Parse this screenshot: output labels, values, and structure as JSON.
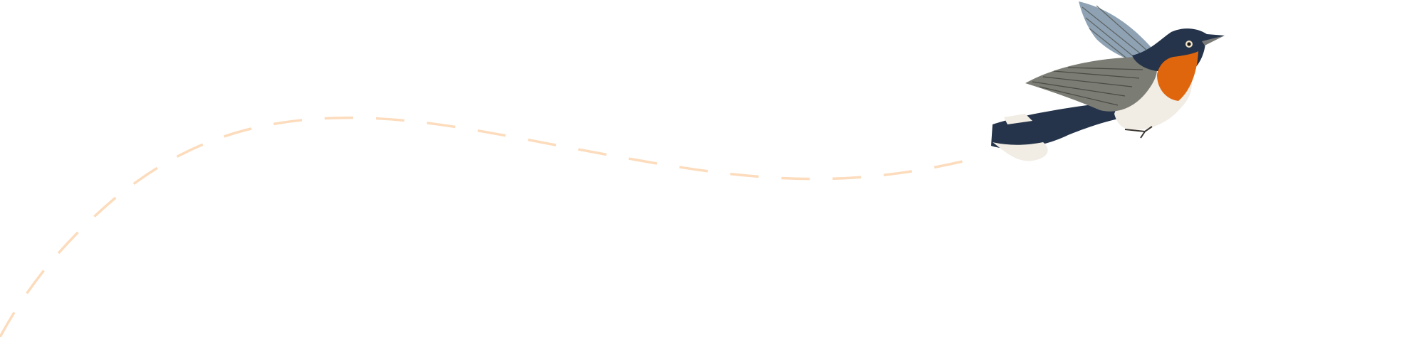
{
  "illustration": {
    "subject": "bird-in-flight",
    "colors": {
      "path_dash": "#fcdcbc",
      "bird_back": "#25344a",
      "bird_throat": "#e0660e",
      "bird_belly": "#f1ece4",
      "bird_wing": "#7b7c74",
      "bird_wing_blue": "#8ea2b4"
    }
  }
}
